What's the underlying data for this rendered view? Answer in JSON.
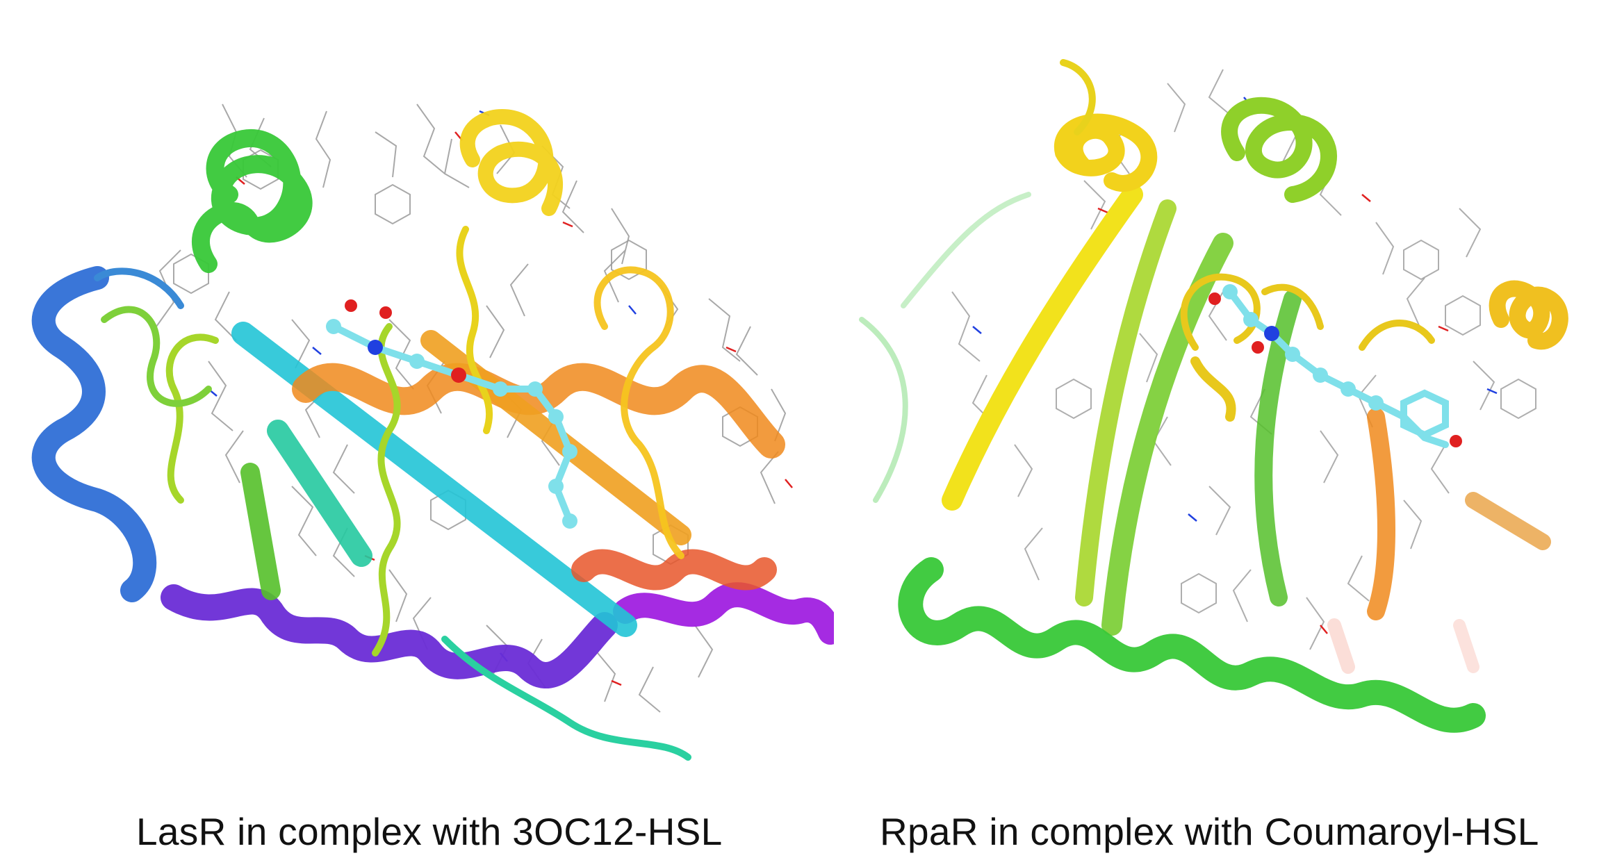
{
  "figure": {
    "panels": [
      {
        "caption": "LasR in complex with 3OC12-HSL"
      },
      {
        "caption": "RpaR in complex with Coumaroyl-HSL"
      }
    ],
    "colors": {
      "background": "#ffffff",
      "caption_text": "#111111",
      "ribbon_blue": "#2f6fd6",
      "ribbon_violet": "#6a2cd6",
      "ribbon_purple": "#a020e0",
      "ribbon_cyan": "#22c4d6",
      "ribbon_green": "#38c838",
      "ribbon_lime": "#a6d62a",
      "ribbon_yellow": "#f2d21c",
      "ribbon_orange": "#f08a1c",
      "ribbon_red_orange": "#e8562a",
      "ligand_carbon": "#7fe0ea",
      "ligand_oxygen": "#e02020",
      "ligand_nitrogen": "#2040e0",
      "sidechain_carbon": "#9a9a9a"
    }
  }
}
